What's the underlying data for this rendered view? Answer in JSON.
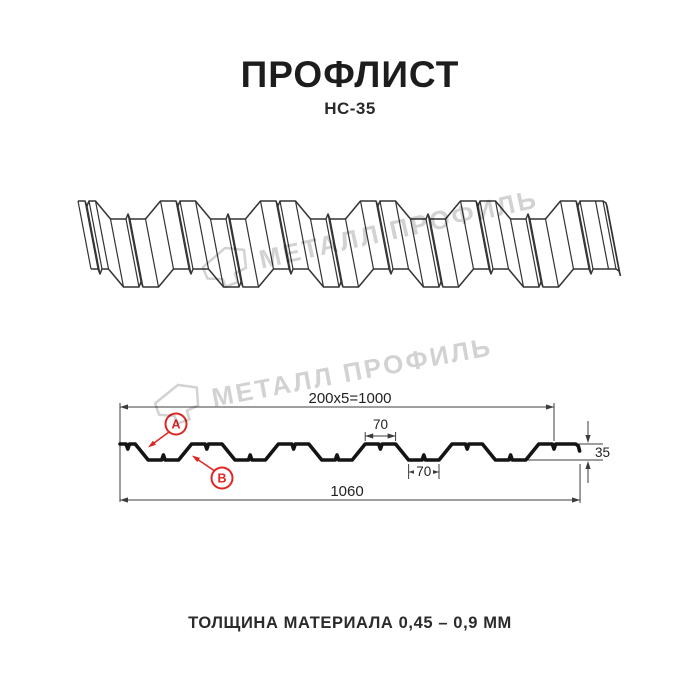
{
  "header": {
    "title": "ПРОФЛИСТ",
    "subtitle": "НС-35"
  },
  "footer": {
    "thickness_note": "ТОЛЩИНА МАТЕРИАЛА 0,45 – 0,9 ММ"
  },
  "watermark": {
    "text": "МЕТАЛЛ ПРОФИЛЬ"
  },
  "colors": {
    "accent_red": "#e02623",
    "section_line": "#141414",
    "drawing_line": "#333333",
    "dim_line": "#3c3c3c",
    "watermark_gray": "#d2d2d2"
  },
  "profile": {
    "name": "НС-35",
    "period_mm": 200,
    "modules": 5,
    "working_width_mm": 1000,
    "overall_width_mm": 1060,
    "height_mm": 35,
    "crest_flange_mm": 70,
    "trough_flange_mm": 70
  },
  "dimensions": {
    "working_width": "200x5=1000",
    "overall_width": "1060",
    "crest_flange": "70",
    "trough_flange": "70",
    "height": "35"
  },
  "markers": {
    "a": "A",
    "b": "B"
  }
}
